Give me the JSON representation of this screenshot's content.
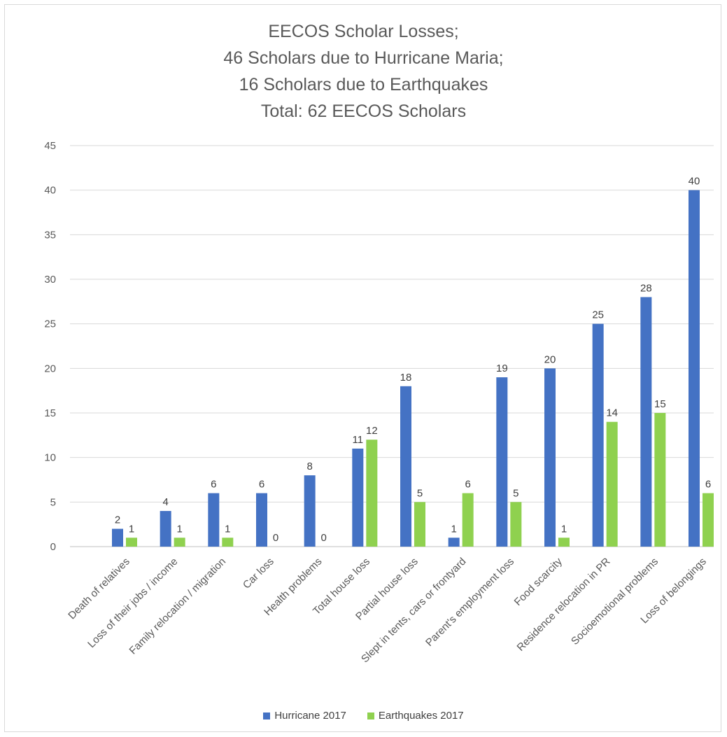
{
  "chart_data": {
    "type": "bar",
    "title_lines": [
      "EECOS Scholar Losses;",
      "46 Scholars due to Hurricane Maria;",
      "16 Scholars due to Earthquakes",
      "Total: 62 EECOS Scholars"
    ],
    "categories": [
      "Death of relatives",
      "Loss of their jobs / income",
      "Family relocation / migration",
      "Car loss",
      "Health problems",
      "Total house loss",
      "Partial house loss",
      "Slept in tents, cars or frontyard",
      "Parent's employment loss",
      "Food scarcity",
      "Residence relocation in PR",
      "Socioemotional problems",
      "Loss of belongings"
    ],
    "series": [
      {
        "name": "Hurricane 2017",
        "color": "#4472c4",
        "values": [
          2,
          4,
          6,
          6,
          8,
          11,
          18,
          1,
          19,
          20,
          25,
          28,
          40
        ]
      },
      {
        "name": "Earthquakes 2017",
        "color": "#8fd14f",
        "values": [
          1,
          1,
          1,
          0,
          0,
          12,
          5,
          6,
          5,
          1,
          14,
          15,
          6
        ]
      }
    ],
    "ylim": [
      0,
      45
    ],
    "yticks": [
      0,
      5,
      10,
      15,
      20,
      25,
      30,
      35,
      40,
      45
    ],
    "grid": true,
    "data_labels": true,
    "legend_position": "bottom"
  }
}
